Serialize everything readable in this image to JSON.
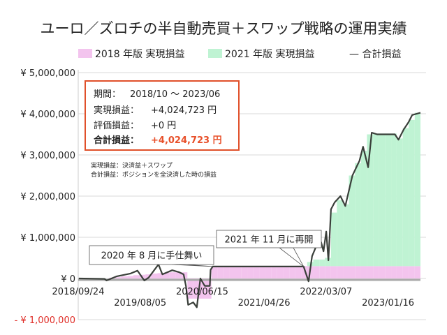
{
  "chart_data": {
    "type": "area",
    "title": "ユーロ／ズロチの半自動売買＋スワップ戦略の運用実績",
    "legend": {
      "placement": "top",
      "entries": [
        "2018 年版 実現損益",
        "2021 年版 実現損益",
        "— 合計損益"
      ]
    },
    "colors": {
      "series_2018": "#f3c4ee",
      "series_2021": "#bff3d3",
      "total_line": "#3a3f3a",
      "negative_label": "#e0302a",
      "box_border": "#e0502a",
      "highlight": "#e8502a"
    },
    "ylim": [
      -1000000,
      5000000
    ],
    "xlim": [
      "2018-09-24",
      "2023-06-30"
    ],
    "grid": true,
    "y_ticks": [
      {
        "value": 5000000,
        "label": "¥ 5,000,000"
      },
      {
        "value": 4000000,
        "label": "¥ 4,000,000"
      },
      {
        "value": 3000000,
        "label": "¥ 3,000,000"
      },
      {
        "value": 2000000,
        "label": "¥ 2,000,000"
      },
      {
        "value": 1000000,
        "label": "¥ 1,000,000"
      },
      {
        "value": 0,
        "label": "¥ 0"
      },
      {
        "value": -1000000,
        "label": "- ¥ 1,000,000"
      }
    ],
    "x_ticks": [
      "2018/09/24",
      "2019/08/05",
      "2020/06/15",
      "2021/04/26",
      "2022/03/07",
      "2023/01/16"
    ],
    "bar_months": [
      "2018-10",
      "2018-11",
      "2018-12",
      "2019-01",
      "2019-02",
      "2019-03",
      "2019-04",
      "2019-05",
      "2019-06",
      "2019-07",
      "2019-08",
      "2019-09",
      "2019-10",
      "2019-11",
      "2019-12",
      "2020-01",
      "2020-02",
      "2020-03",
      "2020-04",
      "2020-05",
      "2020-06",
      "2020-07",
      "2020-08",
      "2020-09",
      "2020-10",
      "2020-11",
      "2020-12",
      "2021-01",
      "2021-02",
      "2021-03",
      "2021-04",
      "2021-05",
      "2021-06",
      "2021-07",
      "2021-08",
      "2021-09",
      "2021-10",
      "2021-11",
      "2021-12",
      "2022-01",
      "2022-02",
      "2022-03",
      "2022-04",
      "2022-05",
      "2022-06",
      "2022-07",
      "2022-08",
      "2022-09",
      "2022-10",
      "2022-11",
      "2022-12",
      "2023-01",
      "2023-02",
      "2023-03",
      "2023-04",
      "2023-05",
      "2023-06"
    ],
    "series": [
      {
        "name": "2018 年版 実現損益",
        "kind": "bar",
        "values": [
          0,
          0,
          0,
          0,
          0,
          20000,
          30000,
          50000,
          60000,
          80000,
          90000,
          100000,
          120000,
          130000,
          140000,
          150000,
          150000,
          150000,
          -490000,
          -490000,
          -490000,
          -490000,
          300000,
          300000,
          300000,
          300000,
          300000,
          300000,
          300000,
          300000,
          300000,
          300000,
          300000,
          300000,
          300000,
          300000,
          300000,
          300000,
          300000,
          300000,
          300000,
          300000,
          300000,
          300000,
          300000,
          300000,
          300000,
          300000,
          300000,
          300000,
          300000,
          300000,
          300000,
          300000,
          300000,
          300000,
          300000
        ]
      },
      {
        "name": "2021 年版 実現損益",
        "kind": "bar-stacked",
        "values": [
          0,
          0,
          0,
          0,
          0,
          0,
          0,
          0,
          0,
          0,
          0,
          0,
          0,
          0,
          0,
          0,
          0,
          0,
          0,
          0,
          0,
          0,
          0,
          0,
          0,
          0,
          0,
          0,
          0,
          0,
          0,
          0,
          0,
          0,
          0,
          0,
          0,
          0,
          100000,
          160000,
          160000,
          200000,
          1300000,
          1600000,
          1500000,
          2200000,
          2500000,
          2800000,
          3200000,
          3220000,
          3220000,
          3220000,
          3220000,
          3100000,
          3350000,
          3550000,
          3725000
        ]
      },
      {
        "name": "合計損益",
        "kind": "line",
        "x": [
          "2018-09-27",
          "2019-02-05",
          "2019-02-15",
          "2019-04-06",
          "2019-06-17",
          "2019-07-22",
          "2019-08-26",
          "2019-09-17",
          "2019-11-06",
          "2019-11-26",
          "2020-01-15",
          "2020-02-20",
          "2020-03-13",
          "2020-03-25",
          "2020-04-05",
          "2020-05-01",
          "2020-05-19",
          "2020-06-06",
          "2020-06-28",
          "2020-07-24",
          "2020-07-28",
          "2020-08-08",
          "2021-11-13",
          "2021-12-08",
          "2021-12-26",
          "2022-01-16",
          "2022-02-10",
          "2022-02-22",
          "2022-03-08",
          "2022-03-19",
          "2022-04-01",
          "2022-04-20",
          "2022-05-19",
          "2022-06-13",
          "2022-07-19",
          "2022-08-24",
          "2022-09-11",
          "2022-10-07",
          "2022-10-25",
          "2022-11-22",
          "2023-02-20",
          "2023-03-10",
          "2023-04-06",
          "2023-05-01",
          "2023-05-19",
          "2023-06-30"
        ],
        "values": [
          0,
          -10000,
          -50000,
          50000,
          120000,
          190000,
          -50000,
          20000,
          340000,
          100000,
          200000,
          150000,
          100000,
          -190000,
          -640000,
          -580000,
          -700000,
          0,
          -180000,
          -180000,
          210000,
          290000,
          290000,
          -70000,
          540000,
          780000,
          880000,
          660000,
          1140000,
          440000,
          1680000,
          1850000,
          2000000,
          1760000,
          2500000,
          2860000,
          3200000,
          2700000,
          3540000,
          3500000,
          3500000,
          3370000,
          3620000,
          3800000,
          3970000,
          4024723
        ]
      }
    ],
    "annotations": [
      {
        "text": "2020 年 8 月に手仕舞い",
        "date": "2020-08-08",
        "value": 290000
      },
      {
        "text": "2021 年 11 月に再開",
        "date": "2021-11-13",
        "value": 290000
      }
    ]
  },
  "summary": {
    "period_label": "期間：",
    "period_value": "2018/10 ～ 2023/06",
    "realized_label": "実現損益：",
    "realized_value": "+4,024,723 円",
    "unrealized_label": "評価損益：",
    "unrealized_value": "+0 円",
    "total_label": "合計損益：",
    "total_value": "+4,024,723 円"
  },
  "notes": [
    "実現損益：決済益＋スワップ",
    "合計損益：ポジションを全決済した時の損益"
  ]
}
